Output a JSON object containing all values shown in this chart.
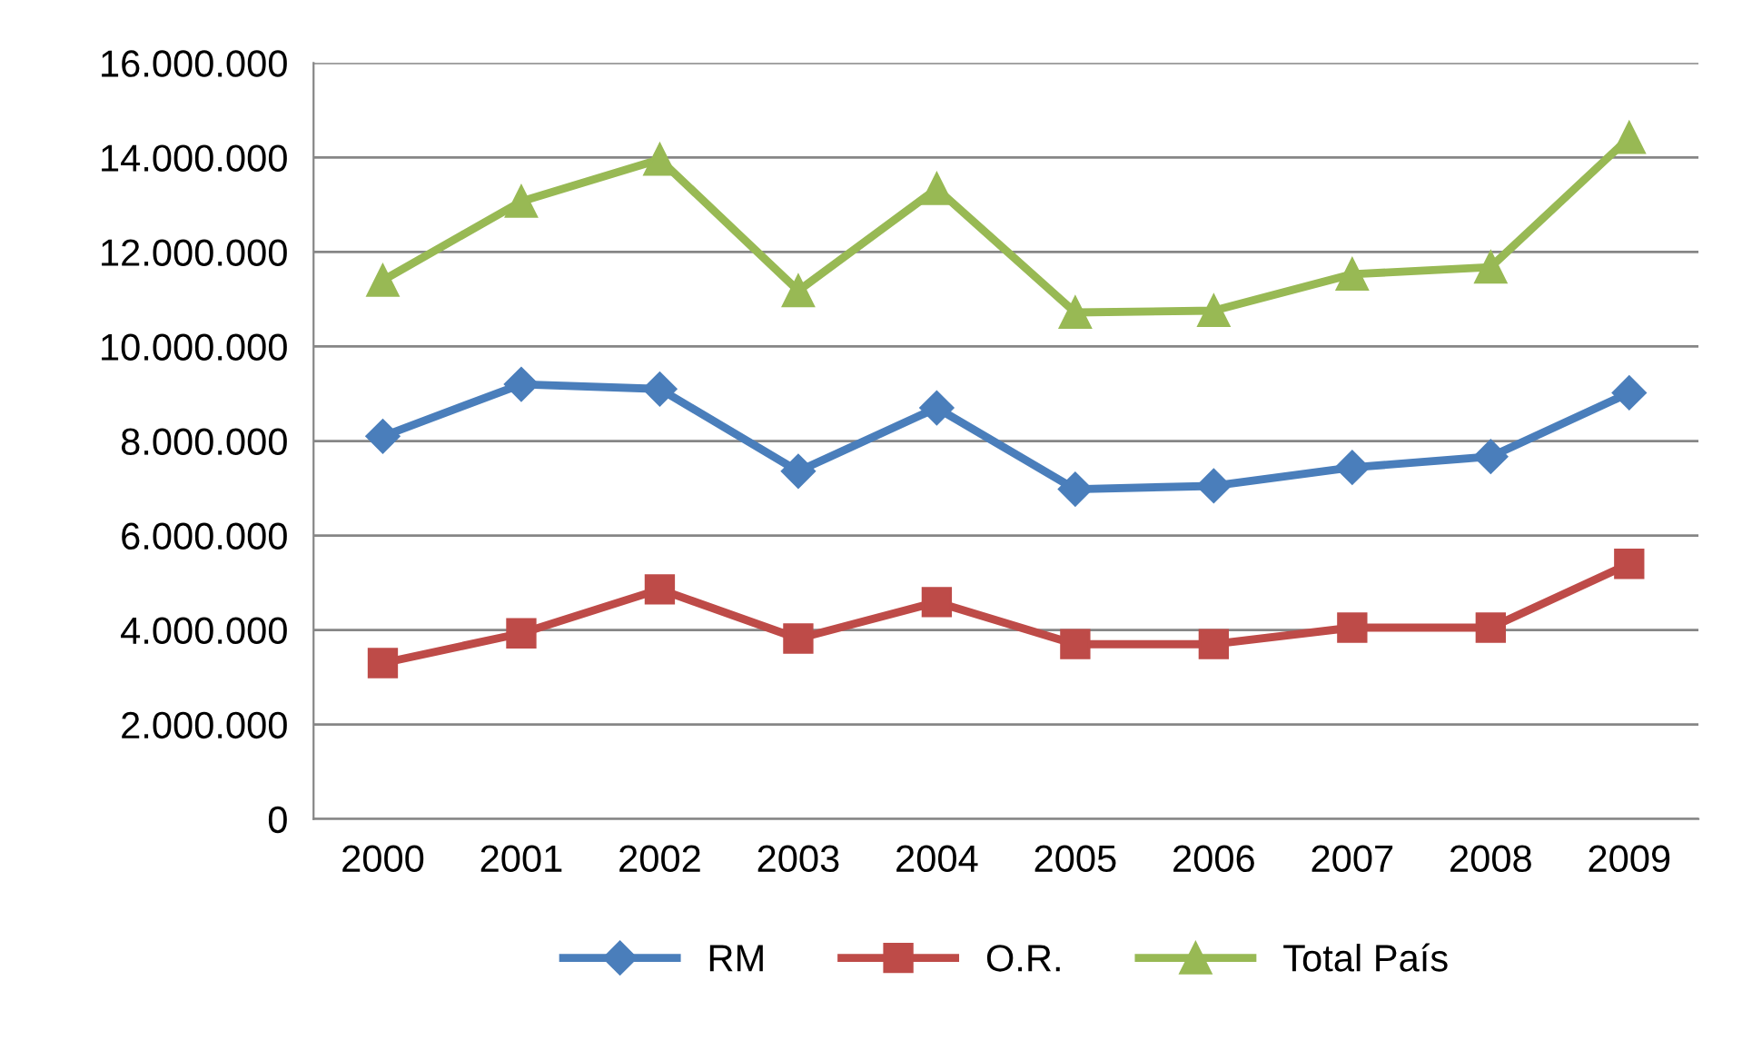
{
  "chart_data": {
    "type": "line",
    "categories": [
      "2000",
      "2001",
      "2002",
      "2003",
      "2004",
      "2005",
      "2006",
      "2007",
      "2008",
      "2009"
    ],
    "series": [
      {
        "name": "RM",
        "color": "#4a7ebb",
        "marker": "diamond",
        "values": [
          8100000,
          9200000,
          9100000,
          7360000,
          8700000,
          6980000,
          7050000,
          7440000,
          7670000,
          9020000
        ]
      },
      {
        "name": "O.R.",
        "color": "#be4b48",
        "marker": "square",
        "values": [
          3300000,
          3930000,
          4860000,
          3820000,
          4590000,
          3700000,
          3700000,
          4050000,
          4050000,
          5400000
        ]
      },
      {
        "name": "Total País",
        "color": "#98b954",
        "marker": "triangle",
        "values": [
          11400000,
          13070000,
          13960000,
          11180000,
          13340000,
          10720000,
          10760000,
          11530000,
          11680000,
          14420000
        ]
      }
    ],
    "ylim": [
      0,
      16000000
    ],
    "yticks": [
      0,
      {
        "value": 2000000,
        "label": "2.000.000"
      },
      {
        "value": 4000000,
        "label": "4.000.000"
      },
      {
        "value": 6000000,
        "label": "6.000.000"
      },
      {
        "value": 8000000,
        "label": "8.000.000"
      },
      {
        "value": 10000000,
        "label": "10.000.000"
      },
      {
        "value": 12000000,
        "label": "12.000.000"
      },
      {
        "value": 14000000,
        "label": "14.000.000"
      },
      {
        "value": 16000000,
        "label": "16.000.000"
      }
    ],
    "grid": "y",
    "legend": "bottom",
    "line_style": "solid"
  }
}
